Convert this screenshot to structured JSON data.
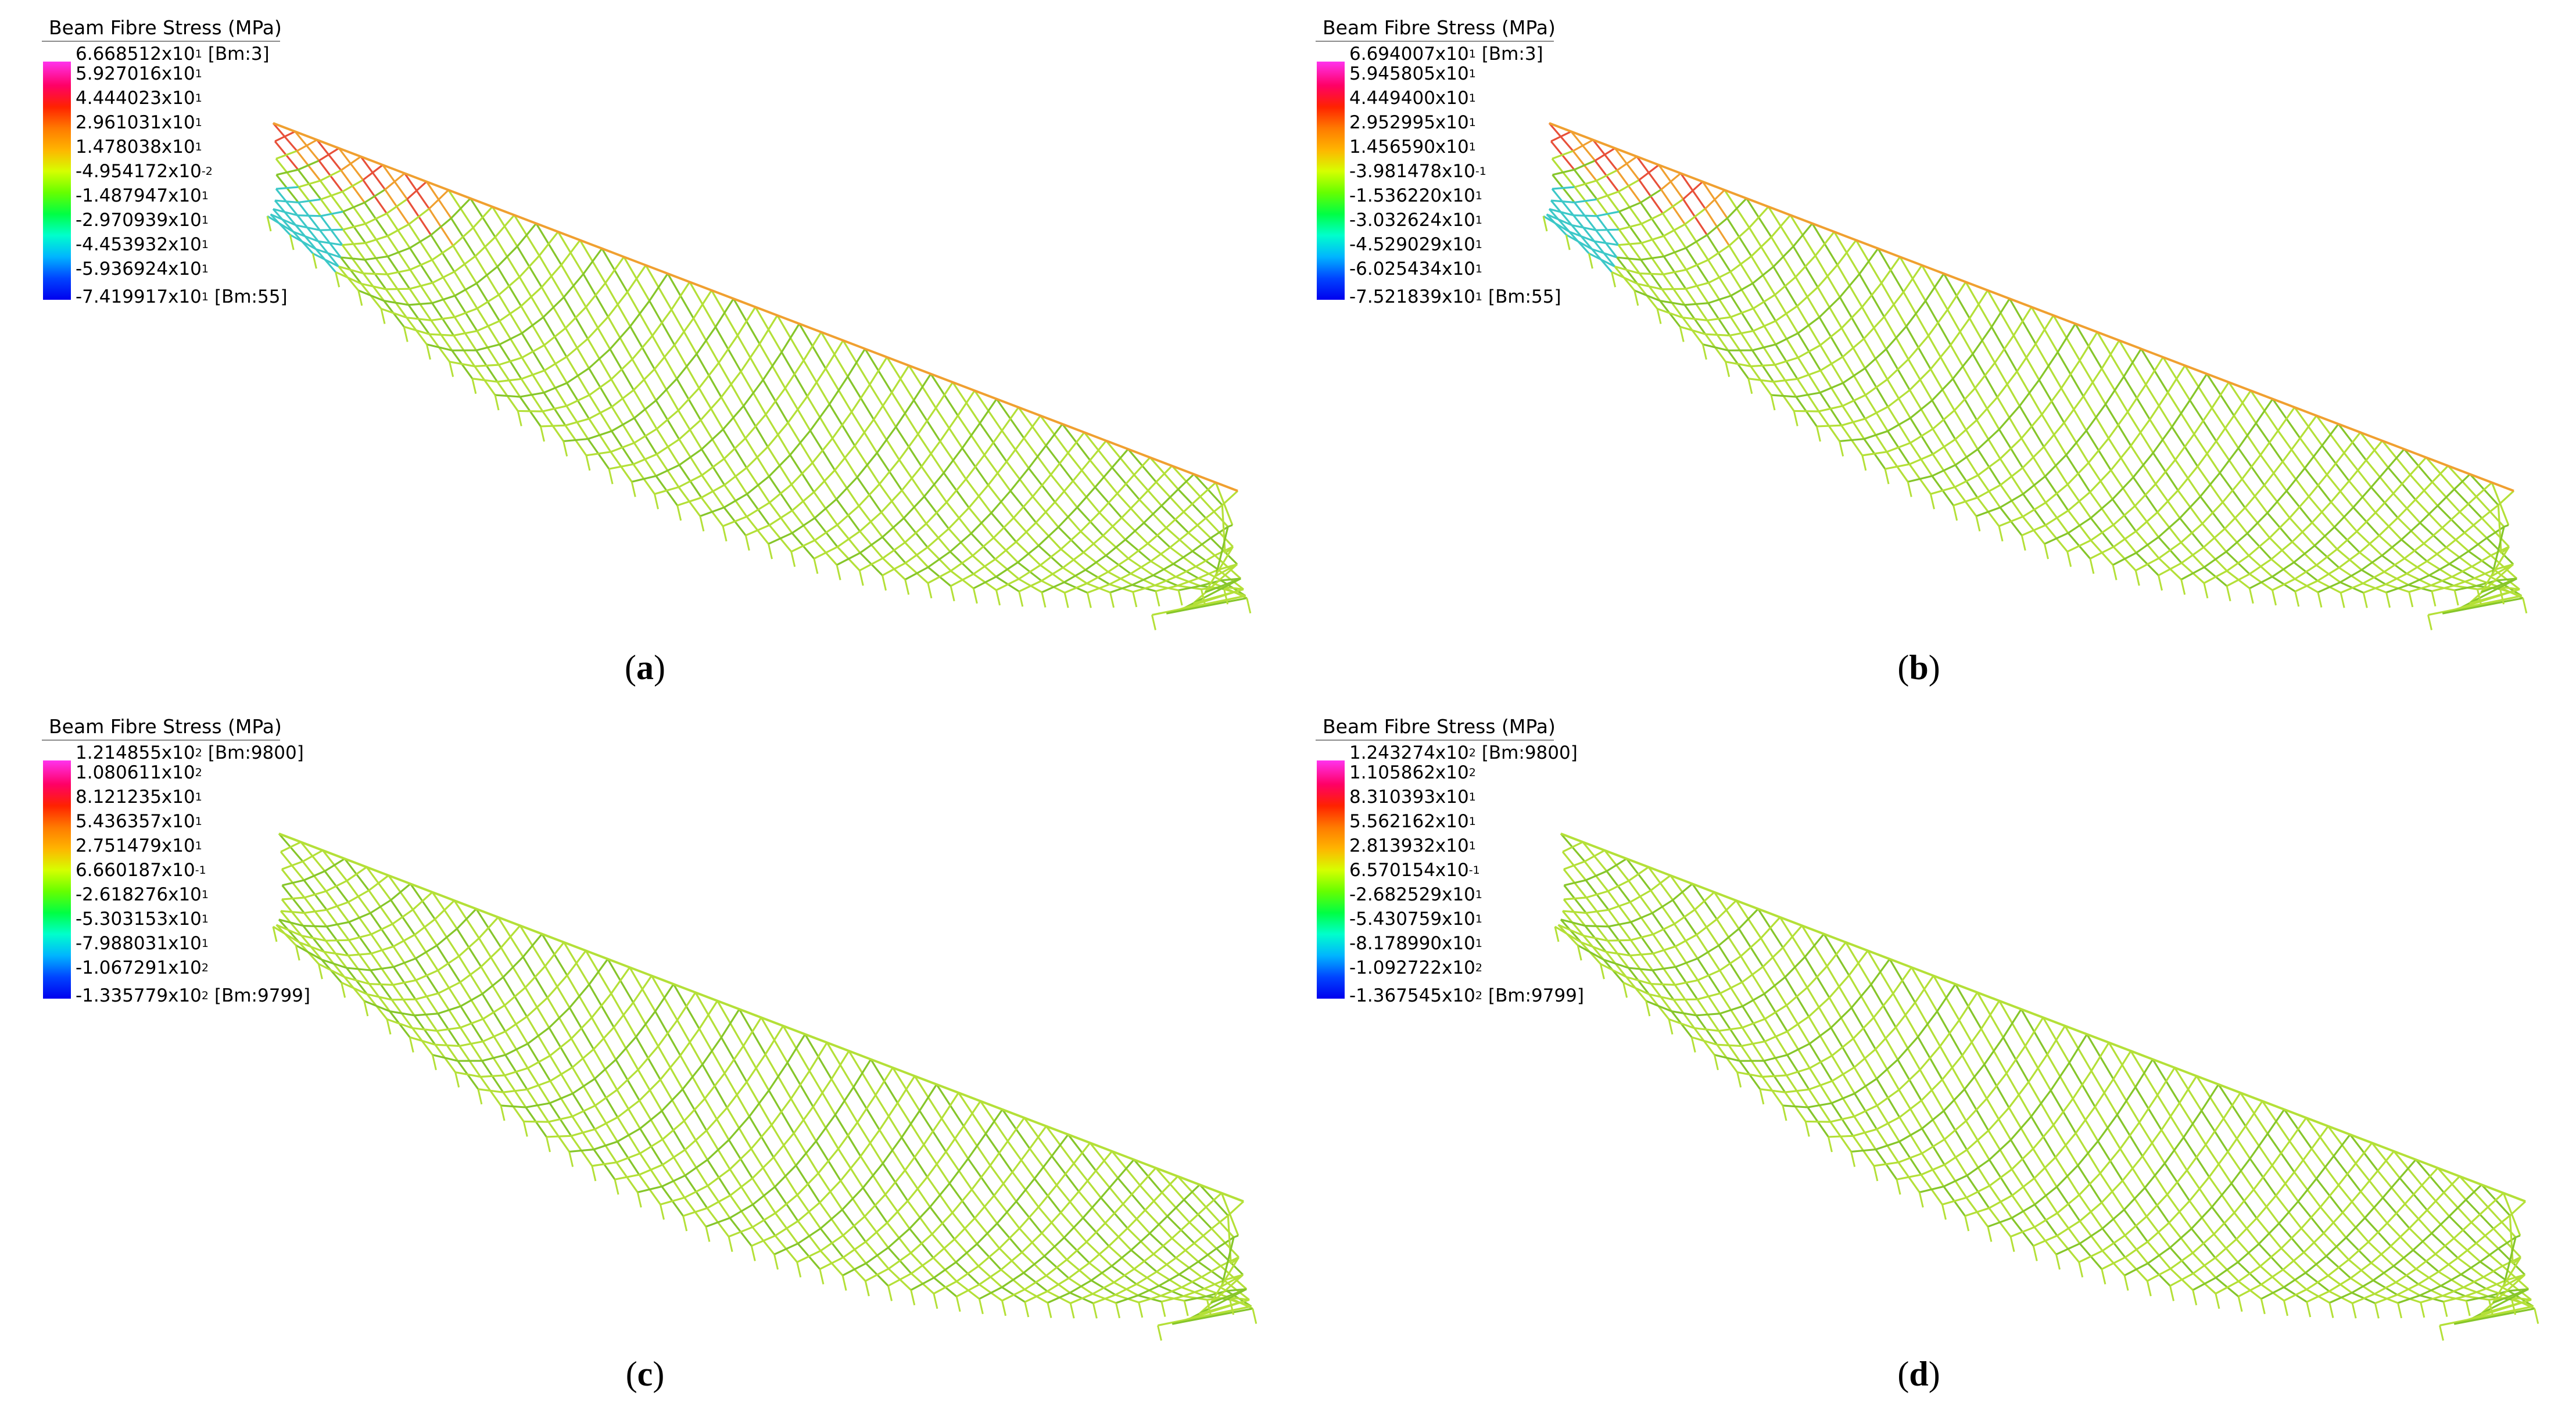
{
  "panels": [
    {
      "id": "a",
      "caption_open": "(",
      "caption_letter": "a",
      "caption_close": ")",
      "legend_title": "Beam Fibre Stress  (MPa)",
      "max_mantissa": "6.668512x10",
      "max_exp": "1",
      "max_tag": "[Bm:3]",
      "ticks": [
        {
          "m": "5.927016x10",
          "e": "1"
        },
        {
          "m": "4.444023x10",
          "e": "1"
        },
        {
          "m": "2.961031x10",
          "e": "1"
        },
        {
          "m": "1.478038x10",
          "e": "1"
        },
        {
          "m": "-4.954172x10",
          "e": "-2"
        },
        {
          "m": "-1.487947x10",
          "e": "1"
        },
        {
          "m": "-2.970939x10",
          "e": "1"
        },
        {
          "m": "-4.453932x10",
          "e": "1"
        },
        {
          "m": "-5.936924x10",
          "e": "1"
        }
      ],
      "min_mantissa": "-7.419917x10",
      "min_exp": "1",
      "min_tag": "[Bm:55]"
    },
    {
      "id": "b",
      "caption_open": "(",
      "caption_letter": "b",
      "caption_close": ")",
      "legend_title": "Beam Fibre Stress  (MPa)",
      "max_mantissa": "6.694007x10",
      "max_exp": "1",
      "max_tag": "[Bm:3]",
      "ticks": [
        {
          "m": "5.945805x10",
          "e": "1"
        },
        {
          "m": "4.449400x10",
          "e": "1"
        },
        {
          "m": "2.952995x10",
          "e": "1"
        },
        {
          "m": "1.456590x10",
          "e": "1"
        },
        {
          "m": "-3.981478x10",
          "e": "-1"
        },
        {
          "m": "-1.536220x10",
          "e": "1"
        },
        {
          "m": "-3.032624x10",
          "e": "1"
        },
        {
          "m": "-4.529029x10",
          "e": "1"
        },
        {
          "m": "-6.025434x10",
          "e": "1"
        }
      ],
      "min_mantissa": "-7.521839x10",
      "min_exp": "1",
      "min_tag": "[Bm:55]"
    },
    {
      "id": "c",
      "caption_open": "(",
      "caption_letter": "c",
      "caption_close": ")",
      "legend_title": "Beam Fibre Stress  (MPa)",
      "max_mantissa": "1.214855x10",
      "max_exp": "2",
      "max_tag": "[Bm:9800]",
      "ticks": [
        {
          "m": "1.080611x10",
          "e": "2"
        },
        {
          "m": "8.121235x10",
          "e": "1"
        },
        {
          "m": "5.436357x10",
          "e": "1"
        },
        {
          "m": "2.751479x10",
          "e": "1"
        },
        {
          "m": "6.660187x10",
          "e": "-1"
        },
        {
          "m": "-2.618276x10",
          "e": "1"
        },
        {
          "m": "-5.303153x10",
          "e": "1"
        },
        {
          "m": "-7.988031x10",
          "e": "1"
        },
        {
          "m": "-1.067291x10",
          "e": "2"
        }
      ],
      "min_mantissa": "-1.335779x10",
      "min_exp": "2",
      "min_tag": "[Bm:9799]"
    },
    {
      "id": "d",
      "caption_open": "(",
      "caption_letter": "d",
      "caption_close": ")",
      "legend_title": "Beam Fibre Stress  (MPa)",
      "max_mantissa": "1.243274x10",
      "max_exp": "2",
      "max_tag": "[Bm:9800]",
      "ticks": [
        {
          "m": "1.105862x10",
          "e": "2"
        },
        {
          "m": "8.310393x10",
          "e": "1"
        },
        {
          "m": "5.562162x10",
          "e": "1"
        },
        {
          "m": "2.813932x10",
          "e": "1"
        },
        {
          "m": "6.570154x10",
          "e": "-1"
        },
        {
          "m": "-2.682529x10",
          "e": "1"
        },
        {
          "m": "-5.430759x10",
          "e": "1"
        },
        {
          "m": "-8.178990x10",
          "e": "1"
        },
        {
          "m": "-1.092722x10",
          "e": "2"
        }
      ],
      "min_mantissa": "-1.367545x10",
      "min_exp": "2",
      "min_tag": "[Bm:9799]"
    }
  ],
  "colors": {
    "mesh": "#b4e038",
    "mesh_dark": "#86c62a",
    "ridge_warm": "#e8503a",
    "ridge_orange": "#f0a030",
    "edge_cyan": "#3cc8c8"
  }
}
